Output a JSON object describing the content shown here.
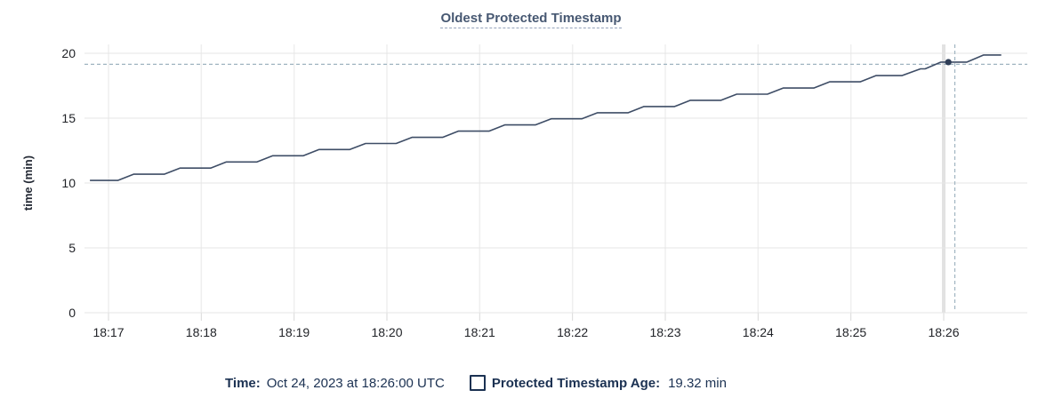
{
  "title": "Oldest Protected Timestamp",
  "legend": {
    "time_label": "Time:",
    "time_value": "Oct 24, 2023 at 18:26:00 UTC",
    "series_label": "Protected Timestamp Age:",
    "series_value": "19.32 min"
  },
  "colors": {
    "line": "#3e4d66",
    "dot": "#2f3e57",
    "title": "#475872",
    "legend_text": "#1b3152",
    "tick_text": "#1f2126",
    "axis_label_text": "#242a35",
    "grid_h": "#e6e6e6",
    "grid_v": "#efefef",
    "grid_v_highlight": "#e2e2e2",
    "tick_mark": "#d9d9d9",
    "crosshair": "#9fb4c0"
  },
  "chart_data": {
    "type": "line",
    "title": "Oldest Protected Timestamp",
    "xlabel": "",
    "ylabel": "time (min)",
    "y_ticks": [
      0,
      5,
      10,
      15,
      20
    ],
    "ylim": [
      0,
      20.7
    ],
    "x_tick_labels": [
      "18:17",
      "18:18",
      "18:19",
      "18:20",
      "18:21",
      "18:22",
      "18:23",
      "18:24",
      "18:25",
      "18:26"
    ],
    "x_domain_minutes_after_1800": [
      16.74,
      26.9
    ],
    "grid": true,
    "legend_position": "bottom",
    "series": [
      {
        "name": "Protected Timestamp Age",
        "unit": "min",
        "points": [
          [
            16.8,
            10.2
          ],
          [
            17.1,
            10.2
          ],
          [
            17.27,
            10.68
          ],
          [
            17.6,
            10.68
          ],
          [
            17.77,
            11.15
          ],
          [
            18.1,
            11.15
          ],
          [
            18.27,
            11.62
          ],
          [
            18.6,
            11.62
          ],
          [
            18.77,
            12.1
          ],
          [
            19.1,
            12.1
          ],
          [
            19.27,
            12.58
          ],
          [
            19.6,
            12.58
          ],
          [
            19.77,
            13.05
          ],
          [
            20.1,
            13.05
          ],
          [
            20.27,
            13.52
          ],
          [
            20.6,
            13.52
          ],
          [
            20.77,
            14.0
          ],
          [
            21.1,
            14.0
          ],
          [
            21.27,
            14.48
          ],
          [
            21.6,
            14.48
          ],
          [
            21.77,
            14.95
          ],
          [
            22.1,
            14.95
          ],
          [
            22.27,
            15.42
          ],
          [
            22.6,
            15.42
          ],
          [
            22.77,
            15.9
          ],
          [
            23.1,
            15.9
          ],
          [
            23.27,
            16.38
          ],
          [
            23.6,
            16.38
          ],
          [
            23.77,
            16.85
          ],
          [
            24.1,
            16.85
          ],
          [
            24.27,
            17.32
          ],
          [
            24.6,
            17.32
          ],
          [
            24.77,
            17.8
          ],
          [
            25.1,
            17.8
          ],
          [
            25.27,
            18.28
          ],
          [
            25.55,
            18.28
          ],
          [
            25.75,
            18.8
          ],
          [
            25.8,
            18.8
          ],
          [
            25.97,
            19.32
          ],
          [
            26.25,
            19.32
          ],
          [
            26.43,
            19.87
          ],
          [
            26.62,
            19.87
          ]
        ]
      }
    ],
    "hover": {
      "highlighted_x_tick": "18:26",
      "dot_minute": 26.05,
      "dot_value": 19.32,
      "crosshair_x_minute": 26.12,
      "crosshair_y_value": 19.15,
      "time_display": "Oct 24, 2023 at 18:26:00 UTC",
      "value_display": "19.32 min"
    }
  }
}
